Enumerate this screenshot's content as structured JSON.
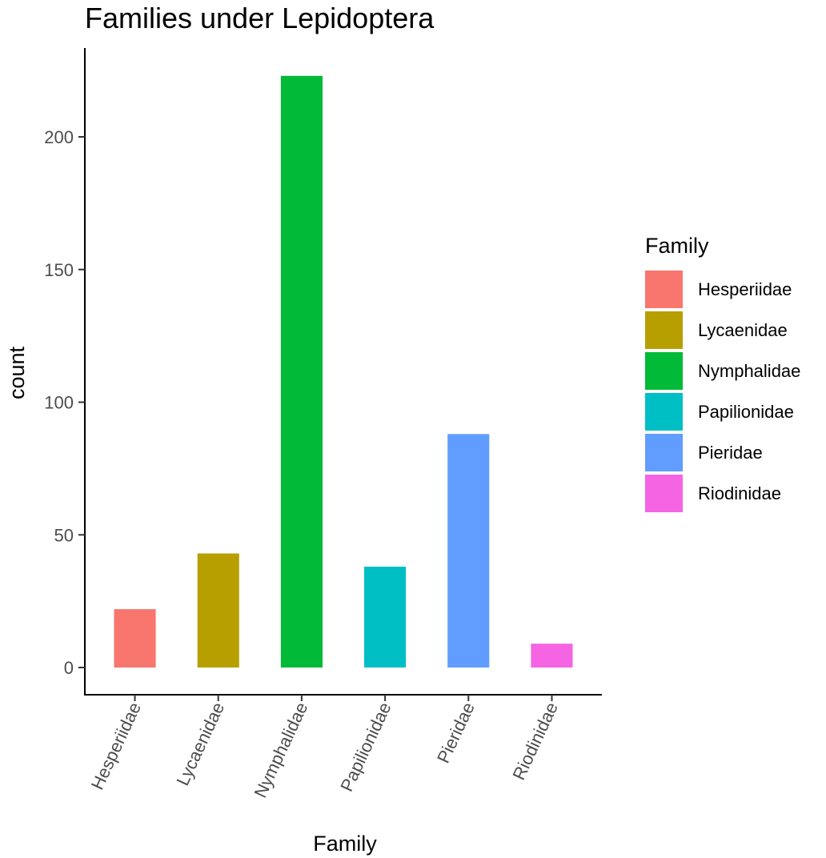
{
  "chart_data": {
    "type": "bar",
    "title": "Families under Lepidoptera",
    "xlabel": "Family",
    "ylabel": "count",
    "categories": [
      "Hesperiidae",
      "Lycaenidae",
      "Nymphalidae",
      "Papilionidae",
      "Pieridae",
      "Riodinidae"
    ],
    "values": [
      22,
      43,
      223,
      38,
      88,
      9
    ],
    "colors": [
      "#F8766D",
      "#B79F00",
      "#00BA38",
      "#00BFC4",
      "#619CFF",
      "#F564E3"
    ],
    "yticks": [
      0,
      50,
      100,
      150,
      200
    ],
    "ylim": [
      -11,
      232
    ],
    "grid": false,
    "legend": {
      "title": "Family",
      "position": "right",
      "entries": [
        "Hesperiidae",
        "Lycaenidae",
        "Nymphalidae",
        "Papilionidae",
        "Pieridae",
        "Riodinidae"
      ]
    }
  }
}
